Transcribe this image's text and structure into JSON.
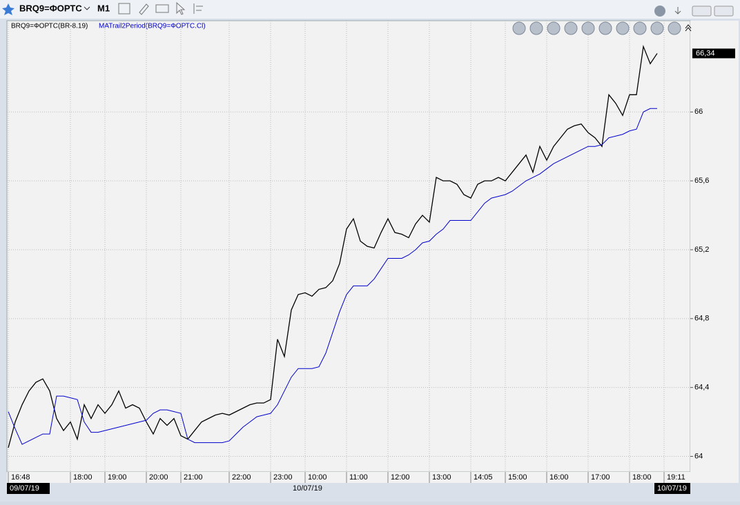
{
  "toolbar": {
    "symbol": "BRQ9=ФОРТС",
    "timeframe": "M1"
  },
  "chart_data": {
    "type": "line",
    "categories": [
      "16:48",
      null,
      null,
      null,
      null,
      null,
      null,
      null,
      null,
      "18:00",
      null,
      null,
      null,
      null,
      "19:00",
      null,
      null,
      null,
      null,
      null,
      "20:00",
      null,
      null,
      null,
      null,
      "21:00",
      null,
      null,
      null,
      null,
      null,
      null,
      "22:00",
      null,
      null,
      null,
      null,
      null,
      "23:00",
      null,
      null,
      null,
      null,
      "10:00",
      null,
      null,
      null,
      null,
      null,
      "11:00",
      null,
      null,
      null,
      null,
      null,
      "12:00",
      null,
      null,
      null,
      null,
      null,
      "13:00",
      null,
      null,
      null,
      null,
      null,
      "14:05",
      null,
      null,
      null,
      null,
      "15:00",
      null,
      null,
      null,
      null,
      null,
      "16:00",
      null,
      null,
      null,
      null,
      null,
      "17:00",
      null,
      null,
      null,
      null,
      null,
      "18:00",
      null,
      null,
      null,
      null,
      "19:11",
      null,
      null,
      null
    ],
    "series": [
      {
        "name": "BRQ9=ФОРТС(BR-8.19)",
        "color": "#000000",
        "values": [
          64.05,
          64.2,
          64.3,
          64.38,
          64.43,
          64.45,
          64.38,
          64.22,
          64.15,
          64.2,
          64.1,
          64.3,
          64.22,
          64.3,
          64.25,
          64.3,
          64.38,
          64.28,
          64.3,
          64.28,
          64.2,
          64.13,
          64.22,
          64.18,
          64.22,
          64.12,
          64.1,
          64.15,
          64.2,
          64.22,
          64.24,
          64.25,
          64.24,
          64.26,
          64.28,
          64.3,
          64.31,
          64.31,
          64.33,
          64.68,
          64.58,
          64.85,
          64.94,
          64.95,
          64.93,
          64.97,
          64.98,
          65.02,
          65.12,
          65.32,
          65.38,
          65.25,
          65.22,
          65.21,
          65.3,
          65.38,
          65.3,
          65.29,
          65.27,
          65.35,
          65.4,
          65.36,
          65.62,
          65.6,
          65.6,
          65.58,
          65.52,
          65.5,
          65.58,
          65.6,
          65.6,
          65.62,
          65.6,
          65.65,
          65.7,
          65.75,
          65.65,
          65.8,
          65.72,
          65.8,
          65.85,
          65.9,
          65.92,
          65.93,
          65.88,
          65.85,
          65.8,
          66.1,
          66.05,
          65.98,
          66.1,
          66.1,
          66.38,
          66.28,
          66.34,
          null,
          null,
          null,
          null
        ]
      },
      {
        "name": "MATrail2Period(BRQ9=ФОРТС.Cl)",
        "color": "#0000cc",
        "values": [
          64.26,
          64.16,
          64.07,
          64.09,
          64.11,
          64.13,
          64.13,
          64.35,
          64.35,
          64.34,
          64.33,
          64.2,
          64.14,
          64.14,
          64.15,
          64.16,
          64.17,
          64.18,
          64.19,
          64.2,
          64.21,
          64.25,
          64.27,
          64.27,
          64.26,
          64.25,
          64.1,
          64.08,
          64.08,
          64.08,
          64.08,
          64.08,
          64.09,
          64.13,
          64.17,
          64.2,
          64.23,
          64.24,
          64.25,
          64.3,
          64.38,
          64.46,
          64.51,
          64.51,
          64.51,
          64.52,
          64.6,
          64.72,
          64.84,
          64.94,
          64.99,
          64.99,
          64.99,
          65.03,
          65.09,
          65.15,
          65.15,
          65.15,
          65.17,
          65.2,
          65.24,
          65.25,
          65.29,
          65.32,
          65.37,
          65.37,
          65.37,
          65.37,
          65.42,
          65.47,
          65.5,
          65.51,
          65.52,
          65.54,
          65.57,
          65.6,
          65.62,
          65.64,
          65.67,
          65.7,
          65.72,
          65.74,
          65.76,
          65.78,
          65.8,
          65.8,
          65.81,
          65.85,
          65.86,
          65.87,
          65.89,
          65.9,
          66.0,
          66.02,
          66.02,
          null,
          null,
          null,
          null
        ]
      }
    ],
    "ylim": [
      63.91,
      66.53
    ],
    "yticks": [
      64,
      {
        "value": 64.4,
        "label": "64,4"
      },
      {
        "value": 64.8,
        "label": "64,8"
      },
      {
        "value": 65.2,
        "label": "65,2"
      },
      {
        "value": 65.6,
        "label": "65,6"
      },
      66
    ],
    "grid": true,
    "last_price": 66.34,
    "last_price_label": "66,34",
    "date_labels": [
      "09/07/19",
      "10/07/19",
      "10/07/19"
    ]
  }
}
